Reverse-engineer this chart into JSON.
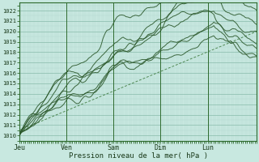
{
  "xlabel": "Pression niveau de la mer( hPa )",
  "bg_color": "#c8e8e0",
  "grid_color_minor": "#b0d8d0",
  "grid_color_major": "#88bbaa",
  "line_color": "#2d5a2d",
  "dashed_color": "#3d7a3d",
  "ylim": [
    1009.5,
    1022.8
  ],
  "yticks": [
    1010,
    1011,
    1012,
    1013,
    1014,
    1015,
    1016,
    1017,
    1018,
    1019,
    1020,
    1021,
    1022
  ],
  "day_labels": [
    "Jeu",
    "Ven",
    "Sam",
    "Dim",
    "Lun"
  ],
  "day_positions": [
    0,
    24,
    48,
    72,
    96
  ],
  "xlim": [
    0,
    121
  ],
  "num_points": 200
}
